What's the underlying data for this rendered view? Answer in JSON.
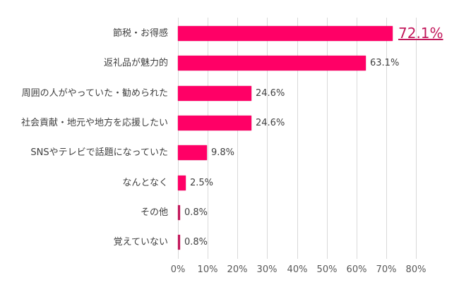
{
  "chart_data": {
    "type": "bar",
    "orientation": "horizontal",
    "title": "",
    "xlabel": "",
    "ylabel": "",
    "xlim": [
      0,
      80
    ],
    "grid": true,
    "legend": null,
    "bar_color": "#ff0066",
    "highlight_color": "#c2185b",
    "categories": [
      "節税・お得感",
      "返礼品が魅力的",
      "周囲の人がやっていた・勧められた",
      "社会貢献・地元や地方を応援したい",
      "SNSやテレビで話題になっていた",
      "なんとなく",
      "その他",
      "覚えていない"
    ],
    "values": [
      72.1,
      63.1,
      24.6,
      24.6,
      9.8,
      2.5,
      0.8,
      0.8
    ],
    "value_labels": [
      "72.1%",
      "63.1%",
      "24.6%",
      "24.6%",
      "9.8%",
      "2.5%",
      "0.8%",
      "0.8%"
    ],
    "highlighted_index": 0,
    "x_ticks": [
      "0%",
      "10%",
      "20%",
      "30%",
      "40%",
      "50%",
      "60%",
      "70%",
      "80%"
    ]
  }
}
